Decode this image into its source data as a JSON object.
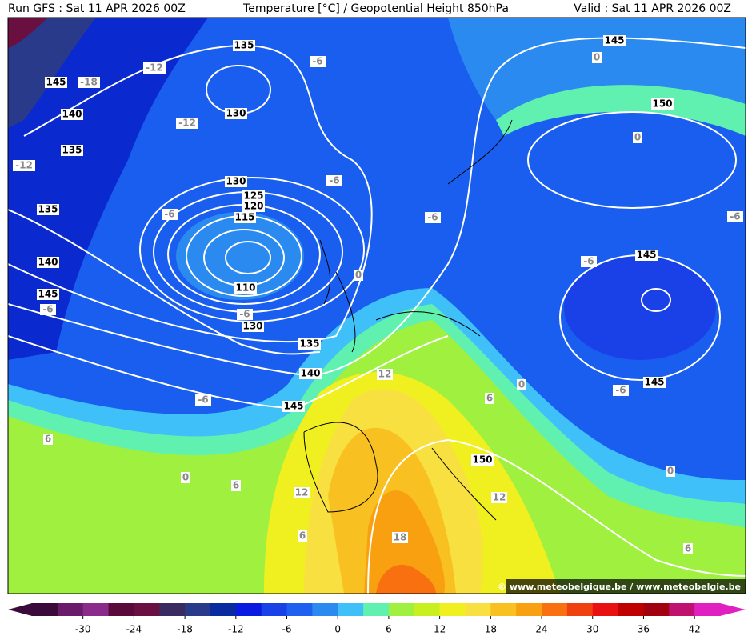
{
  "header": {
    "run": "Run GFS : Sat 11 APR 2026 00Z",
    "title": "Temperature [°C] / Geopotential Height 850hPa",
    "valid": "Valid : Sat 11 APR 2026 00Z"
  },
  "height_labels": [
    135,
    130,
    145,
    140,
    135,
    130,
    125,
    120,
    115,
    110,
    130,
    135,
    140,
    145,
    135,
    140,
    145,
    145,
    150,
    145,
    145,
    150
  ],
  "temperature_labels": [
    -12,
    -18,
    -12,
    -12,
    -6,
    -6,
    -6,
    -6,
    -6,
    -6,
    -6,
    -6,
    -6,
    -6,
    0,
    0,
    0,
    0,
    0,
    0,
    12,
    12,
    12,
    6,
    6,
    6,
    6,
    6,
    18
  ],
  "colorbar": {
    "lim": [
      -36,
      45
    ],
    "ticks": [
      -30,
      -24,
      -18,
      -12,
      -6,
      0,
      6,
      12,
      18,
      24,
      30,
      36,
      42
    ],
    "colors": [
      "#3a0a3a",
      "#6a1a6a",
      "#8a2a8a",
      "#5a0a3a",
      "#6a1040",
      "#3a2a60",
      "#2a3a8a",
      "#0a2aa0",
      "#0a1ae0",
      "#1a40e8",
      "#2060f0",
      "#2a8af0",
      "#40c0f8",
      "#60f0b0",
      "#a0f040",
      "#c8f020",
      "#f0f020",
      "#f8e040",
      "#f8c020",
      "#f8a010",
      "#f87010",
      "#f04010",
      "#e81010",
      "#c00000",
      "#a00010",
      "#c01070",
      "#e020c0"
    ]
  },
  "watermark": "© www.meteobelgique.be / www.meteobelgie.be"
}
